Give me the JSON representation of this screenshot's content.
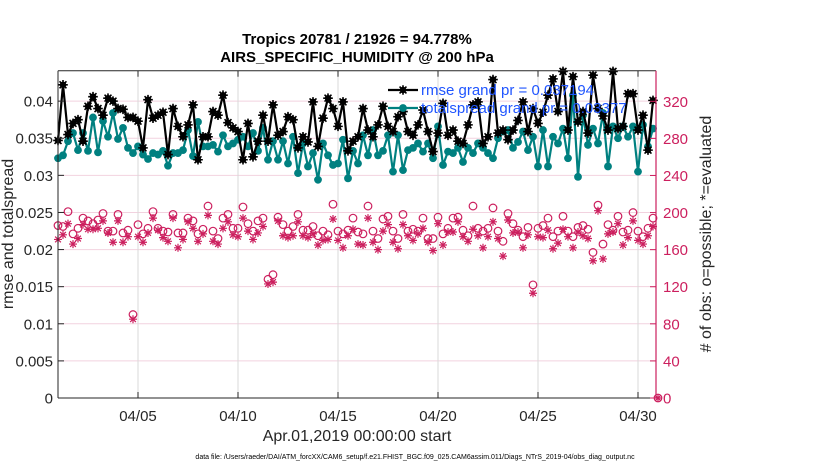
{
  "figure": {
    "footnote": "data file: /Users/raeder/DAI/ATM_forcXX/CAM6_setup/f.e21.FHIST_BGC.f09_025.CAM6assim.011/Diags_NTrS_2019-04/obs_diag_output.nc"
  },
  "colors": {
    "rmse": "#000000",
    "totalspread": "#008080",
    "obs": "#cc1f5e",
    "legend_text": "#1f55ff",
    "axis_left": "#262626",
    "grid_horizontal": "#f2d2df",
    "grid_vertical": "#d9d9d9"
  },
  "chart_data": {
    "type": "line",
    "title": [
      "Tropics 20781 / 21926 = 94.778%",
      "AIRS_SPECIFIC_HUMIDITY @ 200 hPa"
    ],
    "xlabel": "Apr.01,2019 00:00:00 start",
    "ylabel_left": "rmse and totalspread",
    "ylabel_right": "# of obs: o=possible; *=evaluated",
    "x_unit": "days since 2019-04-01 00:00",
    "xlim": [
      0,
      29.9
    ],
    "x_ticks": [
      4,
      9,
      14,
      19,
      24,
      29
    ],
    "x_tick_labels": [
      "04/05",
      "04/10",
      "04/15",
      "04/20",
      "04/25",
      "04/30"
    ],
    "ylim_left": [
      0,
      0.0441
    ],
    "y_left_ticks": [
      0,
      0.005,
      0.01,
      0.015,
      0.02,
      0.025,
      0.03,
      0.035,
      0.04
    ],
    "y_left_tick_labels": [
      "0",
      "0.005",
      "0.01",
      "0.015",
      "0.02",
      "0.025",
      "0.03",
      "0.035",
      "0.04"
    ],
    "ylim_right": [
      0,
      353
    ],
    "y_right_ticks": [
      0,
      40,
      80,
      120,
      160,
      200,
      240,
      280,
      320
    ],
    "y_right_tick_labels": [
      "0",
      "40",
      "80",
      "120",
      "160",
      "200",
      "240",
      "280",
      "320"
    ],
    "grid": true,
    "legend": {
      "placement": "top-right",
      "entries": [
        "rmse grand pr = 0.037194",
        "totalspread grand pr = 0.03377"
      ]
    },
    "x": [
      0,
      0.25,
      0.5,
      0.75,
      1,
      1.25,
      1.5,
      1.75,
      2,
      2.25,
      2.5,
      2.75,
      3,
      3.25,
      3.5,
      3.75,
      4,
      4.25,
      4.5,
      4.75,
      5,
      5.25,
      5.5,
      5.75,
      6,
      6.25,
      6.5,
      6.75,
      7,
      7.25,
      7.5,
      7.75,
      8,
      8.25,
      8.5,
      8.75,
      9,
      9.25,
      9.5,
      9.75,
      10,
      10.25,
      10.5,
      10.75,
      11,
      11.25,
      11.5,
      11.75,
      12,
      12.25,
      12.5,
      12.75,
      13,
      13.25,
      13.5,
      13.75,
      14,
      14.25,
      14.5,
      14.75,
      15,
      15.25,
      15.5,
      15.75,
      16,
      16.25,
      16.5,
      16.75,
      17,
      17.25,
      17.5,
      17.75,
      18,
      18.25,
      18.5,
      18.75,
      19,
      19.25,
      19.5,
      19.75,
      20,
      20.25,
      20.5,
      20.75,
      21,
      21.25,
      21.5,
      21.75,
      22,
      22.25,
      22.5,
      22.75,
      23,
      23.25,
      23.5,
      23.75,
      24,
      24.25,
      24.5,
      24.75,
      25,
      25.25,
      25.5,
      25.75,
      26,
      26.25,
      26.5,
      26.75,
      27,
      27.25,
      27.5,
      27.75,
      28,
      28.25,
      28.5,
      28.75,
      29,
      29.25,
      29.5,
      29.75,
      30
    ],
    "series": [
      {
        "name": "rmse",
        "axis": "left",
        "style": "line+filled-star-marker",
        "values": [
          0.0347,
          0.0422,
          0.0355,
          0.037,
          0.0375,
          0.0346,
          0.0393,
          0.0406,
          0.039,
          0.0381,
          0.0404,
          0.04,
          0.039,
          0.0389,
          0.0378,
          0.0378,
          0.0373,
          0.0337,
          0.0402,
          0.0377,
          0.0381,
          0.0385,
          0.0328,
          0.039,
          0.0366,
          0.0352,
          0.0368,
          0.0395,
          0.0321,
          0.0352,
          0.0352,
          0.0386,
          0.0381,
          0.0408,
          0.0371,
          0.0364,
          0.0359,
          0.0321,
          0.037,
          0.0325,
          0.0346,
          0.0381,
          0.0346,
          0.0395,
          0.0354,
          0.0359,
          0.0379,
          0.0375,
          0.0337,
          0.0352,
          0.0345,
          0.0399,
          0.0339,
          0.0377,
          0.0404,
          0.039,
          0.0366,
          0.0399,
          0.0333,
          0.0346,
          0.0352,
          0.039,
          0.0361,
          0.0352,
          0.0368,
          0.0393,
          0.0366,
          0.0359,
          0.0379,
          0.0386,
          0.0359,
          0.0354,
          0.0368,
          0.0388,
          0.0359,
          0.0332,
          0.0357,
          0.0397,
          0.0354,
          0.0361,
          0.0346,
          0.0343,
          0.0368,
          0.0395,
          0.0399,
          0.0343,
          0.0352,
          0.0429,
          0.0357,
          0.0361,
          0.0348,
          0.0361,
          0.0374,
          0.0399,
          0.0359,
          0.039,
          0.037,
          0.0385,
          0.0408,
          0.043,
          0.0386,
          0.044,
          0.0361,
          0.0433,
          0.0372,
          0.0386,
          0.0357,
          0.0435,
          0.039,
          0.038,
          0.0361,
          0.044,
          0.0363,
          0.0366,
          0.041,
          0.041,
          0.0361,
          0.0381,
          0.0334,
          0.0401,
          null
        ]
      },
      {
        "name": "totalspread",
        "axis": "left",
        "style": "line+filled-circle-marker",
        "values": [
          0.0323,
          0.0327,
          0.0346,
          0.0357,
          0.0334,
          0.0357,
          0.0333,
          0.0378,
          0.0331,
          0.0373,
          0.0352,
          0.0384,
          0.0349,
          0.0364,
          0.0337,
          0.033,
          0.0339,
          0.0328,
          0.0322,
          0.033,
          0.0328,
          0.0333,
          0.0313,
          0.033,
          0.033,
          0.0334,
          0.0361,
          0.0326,
          0.0372,
          0.0339,
          0.0339,
          0.0341,
          0.0332,
          0.0354,
          0.0339,
          0.0343,
          0.0348,
          0.0352,
          0.0339,
          0.0357,
          0.0333,
          0.0364,
          0.0321,
          0.0346,
          0.0321,
          0.0346,
          0.0316,
          0.0352,
          0.0303,
          0.0343,
          0.0312,
          0.033,
          0.0294,
          0.0343,
          0.0327,
          0.0314,
          0.0316,
          0.0348,
          0.0296,
          0.0333,
          0.0316,
          0.0354,
          0.0327,
          0.0361,
          0.0327,
          0.0333,
          0.0354,
          0.0305,
          0.0354,
          0.0307,
          0.0334,
          0.0337,
          0.0343,
          0.0332,
          0.0343,
          0.0323,
          0.0366,
          0.0314,
          0.0332,
          0.033,
          0.0337,
          0.0318,
          0.0337,
          0.033,
          0.0343,
          0.0337,
          0.033,
          0.0323,
          0.035,
          0.0359,
          0.0361,
          0.0337,
          0.0345,
          0.0359,
          0.0334,
          0.0352,
          0.0312,
          0.0361,
          0.0312,
          0.0352,
          0.0343,
          0.0363,
          0.0323,
          0.0408,
          0.0298,
          0.0381,
          0.0341,
          0.0363,
          0.0343,
          0.0384,
          0.0312,
          0.0366,
          0.035,
          0.0366,
          0.0352,
          0.0366,
          0.0305,
          0.0368,
          0.0339,
          0.0363,
          null
        ]
      },
      {
        "name": "obs possible",
        "axis": "right",
        "style": "open-circle-marker",
        "values": [
          186,
          185,
          201,
          177,
          183,
          194,
          191,
          188,
          192,
          199,
          180,
          180,
          198,
          178,
          181,
          90,
          187,
          177,
          183,
          201,
          183,
          180,
          179,
          198,
          178,
          178,
          194,
          191,
          177,
          182,
          207,
          180,
          172,
          194,
          198,
          183,
          183,
          206,
          188,
          180,
          191,
          194,
          128,
          133,
          195,
          187,
          180,
          185,
          198,
          181,
          181,
          185,
          175,
          180,
          176,
          209,
          180,
          177,
          181,
          194,
          179,
          177,
          207,
          180,
          172,
          193,
          196,
          180,
          172,
          198,
          180,
          182,
          180,
          194,
          172,
          172,
          195,
          177,
          183,
          194,
          195,
          181,
          175,
          207,
          183,
          180,
          183,
          205,
          180,
          169,
          199,
          188,
          181,
          174,
          184,
          122,
          183,
          186,
          194,
          174,
          180,
          196,
          180,
          174,
          184,
          186,
          182,
          157,
          208,
          166,
          187,
          181,
          196,
          179,
          181,
          200,
          180,
          174,
          183,
          194,
          0
        ]
      },
      {
        "name": "obs evaluated",
        "axis": "right",
        "style": "asterisk-marker",
        "values": [
          171,
          176,
          188,
          166,
          172,
          187,
          182,
          182,
          183,
          191,
          178,
          168,
          191,
          168,
          174,
          85,
          174,
          168,
          178,
          194,
          181,
          173,
          169,
          194,
          162,
          171,
          190,
          183,
          169,
          177,
          197,
          169,
          166,
          183,
          190,
          176,
          174,
          194,
          180,
          171,
          178,
          185,
          123,
          125,
          191,
          175,
          173,
          175,
          190,
          175,
          173,
          177,
          165,
          170,
          171,
          193,
          170,
          162,
          175,
          182,
          166,
          165,
          194,
          168,
          160,
          180,
          187,
          168,
          161,
          187,
          175,
          170,
          177,
          183,
          168,
          159,
          188,
          165,
          179,
          179,
          190,
          174,
          169,
          182,
          175,
          162,
          174,
          190,
          172,
          153,
          192,
          178,
          179,
          162,
          176,
          113,
          174,
          173,
          181,
          161,
          167,
          182,
          174,
          162,
          179,
          175,
          172,
          148,
          202,
          150,
          177,
          179,
          188,
          165,
          173,
          191,
          170,
          166,
          175,
          185,
          0
        ]
      }
    ]
  }
}
